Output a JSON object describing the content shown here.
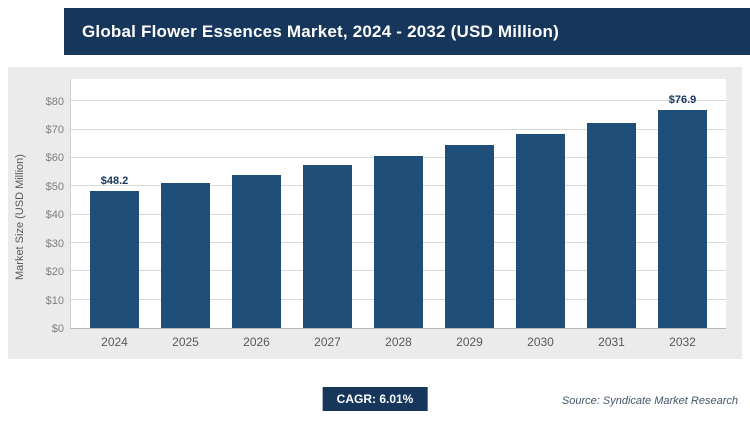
{
  "header": {
    "title": "Global Flower Essences Market, 2024 - 2032 (USD Million)"
  },
  "chart_data": {
    "type": "bar",
    "title": "Global Flower Essences Market, 2024 - 2032 (USD Million)",
    "categories": [
      "2024",
      "2025",
      "2026",
      "2027",
      "2028",
      "2029",
      "2030",
      "2031",
      "2032"
    ],
    "values": [
      48.2,
      51.1,
      54.2,
      57.4,
      60.9,
      64.5,
      68.4,
      72.5,
      76.9
    ],
    "labels": [
      "$48.2",
      "",
      "",
      "",
      "",
      "",
      "",
      "",
      "$76.9"
    ],
    "xlabel": "",
    "ylabel": "Market Size (USD Million)",
    "ylim": [
      0,
      80
    ],
    "ytick_step": 10,
    "ytick_prefix": "$",
    "grid": true,
    "legend": "none",
    "bar_color": "#1F4E79",
    "cagr_annotation": "CAGR: 6.01%"
  },
  "footer": {
    "cagr_label": "CAGR: 6.01%",
    "source": "Source: Syndicate Market Research"
  },
  "colors": {
    "header_bg": "#16365C",
    "panel_bg": "#EBEBEB",
    "bar": "#1F4E79",
    "badge_bg": "#16365C"
  }
}
